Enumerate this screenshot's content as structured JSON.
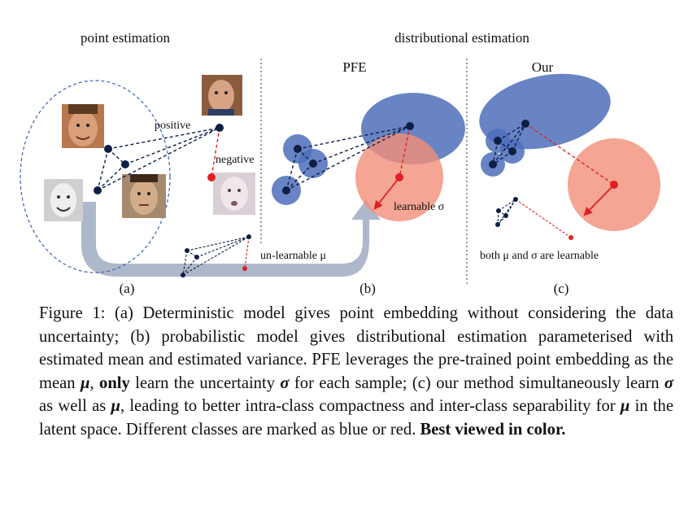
{
  "figure": {
    "panel_titles": {
      "point": "point estimation",
      "distributional": "distributional estimation",
      "pfe": "PFE",
      "our": "Our"
    },
    "annotations": {
      "positive": "positive",
      "negative": "negative",
      "learnable_sigma": "learnable σ",
      "unlearnable_mu": "un-learnable μ",
      "both_learnable": "both μ and σ are learnable"
    },
    "sublabels": {
      "a": "(a)",
      "b": "(b)",
      "c": "(c)"
    },
    "colors": {
      "dark_point": "#0d1f45",
      "blue_region": "#4d6fbb",
      "red_region": "#f28f78",
      "red_point": "#e02020",
      "arrow": "#a9b5c8"
    }
  },
  "caption": {
    "p1": "Figure 1: (a) Deterministic model gives point embedding without considering the data uncertainty; (b) probabilistic model gives distributional estimation parameterised with estimated mean and estimated variance. PFE leverages the pre-trained point embedding as the mean ",
    "mu1": "μ",
    "p2": ", ",
    "only": "only",
    "p3": " learn the uncertainty ",
    "sigma1": "σ",
    "p4": " for each sample; (c) our method simultaneously learn ",
    "sigma2": "σ",
    "p5": " as well as ",
    "mu2": "μ",
    "p6": ", leading to better intra-class compactness and inter-class separability for ",
    "mu3": "μ",
    "p7": " in the latent space. Different classes are marked as blue or red. ",
    "best": "Best viewed in color."
  }
}
